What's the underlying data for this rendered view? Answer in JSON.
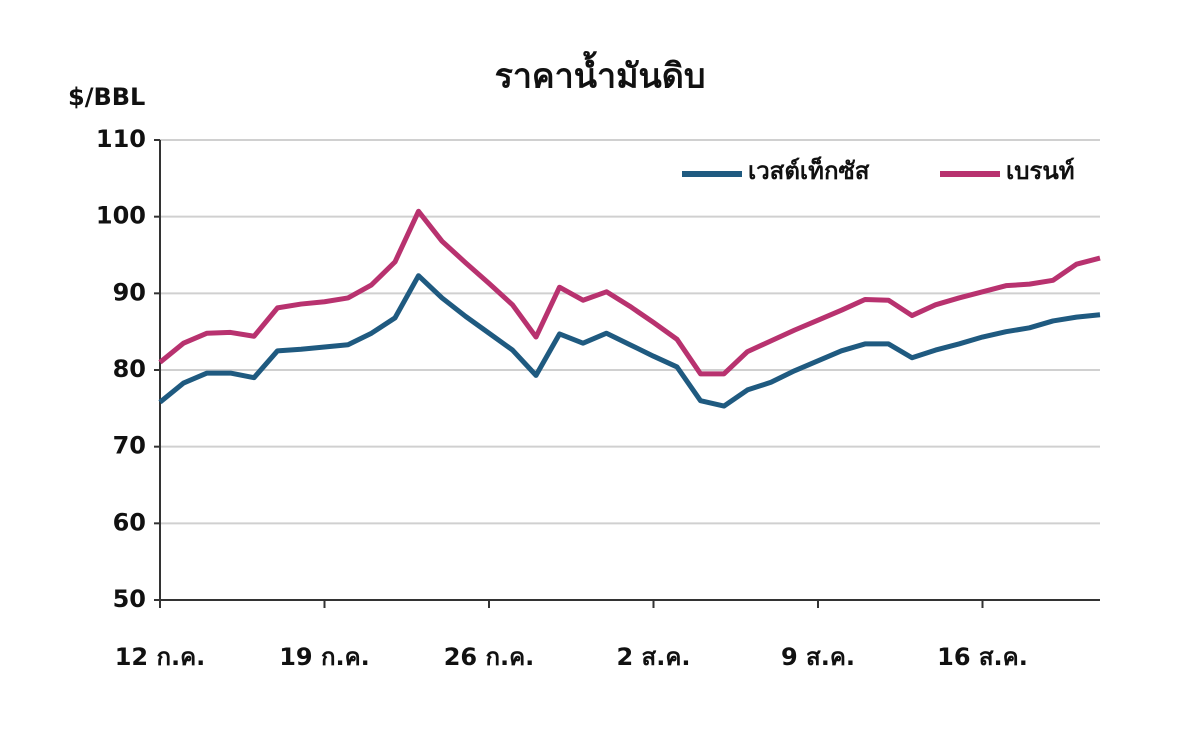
{
  "chart_data": {
    "type": "line",
    "title": "ราคาน้ำมันดิบ",
    "y_label": "$/BBL",
    "categories": [
      "12 ก.ค.",
      null,
      null,
      null,
      null,
      null,
      null,
      "19 ก.ค.",
      null,
      null,
      null,
      null,
      null,
      null,
      "26 ก.ค.",
      null,
      null,
      null,
      null,
      null,
      null,
      "2 ส.ค.",
      null,
      null,
      null,
      null,
      null,
      null,
      "9 ส.ค.",
      null,
      null,
      null,
      null,
      null,
      null,
      "16 ส.ค.",
      null,
      null,
      null,
      null,
      null
    ],
    "series": [
      {
        "name": "เวสต์เท็กซัส",
        "color": "#1f5a80",
        "values": [
          75.8,
          78.3,
          79.6,
          79.6,
          79.0,
          82.5,
          82.7,
          83.0,
          83.3,
          84.8,
          86.8,
          92.3,
          89.4,
          87.0,
          84.8,
          82.6,
          79.3,
          84.7,
          83.5,
          84.8,
          83.3,
          81.8,
          80.4,
          76.0,
          75.3,
          77.4,
          78.4,
          79.9,
          81.2,
          82.5,
          83.4,
          83.4,
          81.6,
          82.6,
          83.4,
          84.3,
          85.0,
          85.5,
          86.4,
          86.9,
          87.2
        ]
      },
      {
        "name": "เบรนท์",
        "color": "#b8326f",
        "values": [
          81.0,
          83.5,
          84.8,
          84.9,
          84.4,
          88.1,
          88.6,
          88.9,
          89.4,
          91.1,
          94.1,
          100.7,
          96.8,
          94.0,
          91.3,
          88.5,
          84.3,
          90.8,
          89.1,
          90.2,
          88.3,
          86.2,
          84.0,
          79.5,
          79.5,
          82.4,
          83.8,
          85.2,
          86.5,
          87.8,
          89.2,
          89.1,
          87.1,
          88.5,
          89.4,
          90.2,
          91.0,
          91.2,
          91.7,
          93.8,
          94.6
        ]
      }
    ],
    "ylim": [
      50,
      110
    ],
    "yticks": [
      50,
      60,
      70,
      80,
      90,
      100,
      110
    ],
    "grid": true,
    "legend": "top-right"
  }
}
